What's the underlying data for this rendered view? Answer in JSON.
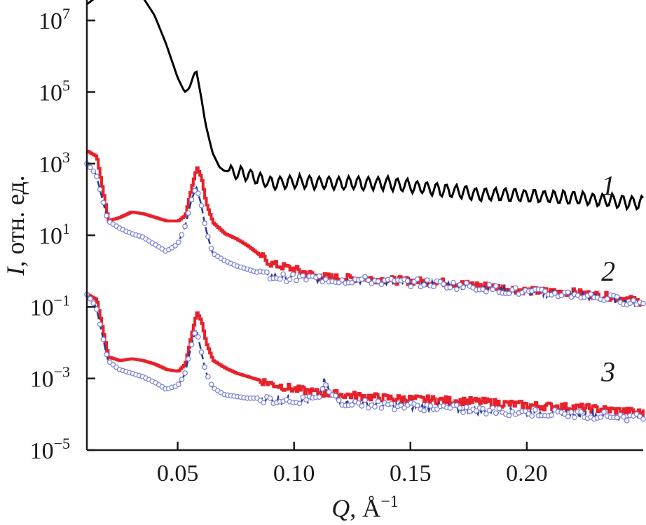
{
  "chart_data": {
    "type": "line",
    "title": "",
    "xlabel": "Q, Å−1",
    "ylabel": "I, отн. ед.",
    "xlabel_parts": {
      "var": "Q",
      "rest": ", Å",
      "sup": "−1"
    },
    "ylabel_parts": {
      "var": "I",
      "rest": ", отн. ед."
    },
    "x_scale": "linear",
    "y_scale": "log",
    "xlim": [
      0.011,
      0.25
    ],
    "ylim_exp": [
      -5,
      8
    ],
    "x_ticks": [
      {
        "value": 0.05,
        "label": "0.05"
      },
      {
        "value": 0.1,
        "label": "0.10"
      },
      {
        "value": 0.15,
        "label": "0.15"
      },
      {
        "value": 0.2,
        "label": "0.20"
      }
    ],
    "y_ticks": [
      {
        "exp": 7,
        "base": "10",
        "sup": "7"
      },
      {
        "exp": 5,
        "base": "10",
        "sup": "5"
      },
      {
        "exp": 3,
        "base": "10",
        "sup": "3"
      },
      {
        "exp": 1,
        "base": "10",
        "sup": "1"
      },
      {
        "exp": -1,
        "base": "10",
        "sup": "−1"
      },
      {
        "exp": -3,
        "base": "10",
        "sup": "−3"
      },
      {
        "exp": -5,
        "base": "10",
        "sup": "−5"
      }
    ],
    "grid": false,
    "legend": "none",
    "curve_labels": [
      {
        "text": "1",
        "anchor": [
          0.235,
          2.4
        ]
      },
      {
        "text": "2",
        "anchor": [
          0.235,
          0.0
        ]
      },
      {
        "text": "3",
        "anchor": [
          0.235,
          -2.8
        ]
      }
    ],
    "colors": {
      "curve1": "#000000",
      "experiment": "#e8202a",
      "model_line": "#2a3a9a",
      "model_markers": "#7f86d8"
    },
    "series": [
      {
        "id": "1",
        "style": "black-line",
        "oscillating": true,
        "x": [
          0.011,
          0.015,
          0.02,
          0.025,
          0.03,
          0.035,
          0.04,
          0.045,
          0.05,
          0.053,
          0.055,
          0.057,
          0.058,
          0.06,
          0.062,
          0.065,
          0.068,
          0.07,
          0.075,
          0.08,
          0.09,
          0.1,
          0.12,
          0.14,
          0.16,
          0.18,
          0.2,
          0.22,
          0.24,
          0.248
        ],
        "log10_y": [
          7.45,
          7.65,
          7.78,
          7.85,
          7.83,
          7.65,
          7.15,
          6.35,
          5.4,
          5.0,
          5.1,
          5.5,
          5.6,
          4.9,
          4.1,
          3.3,
          2.9,
          2.8,
          2.75,
          2.7,
          2.45,
          2.5,
          2.45,
          2.45,
          2.3,
          2.15,
          2.1,
          2.05,
          1.95,
          1.9
        ]
      },
      {
        "id": "2-exp",
        "style": "red-step",
        "x": [
          0.011,
          0.015,
          0.02,
          0.025,
          0.03,
          0.035,
          0.04,
          0.045,
          0.05,
          0.053,
          0.056,
          0.058,
          0.06,
          0.062,
          0.065,
          0.07,
          0.075,
          0.08,
          0.085,
          0.09,
          0.1,
          0.11,
          0.12,
          0.13,
          0.14,
          0.16,
          0.18,
          0.2,
          0.22,
          0.24,
          0.248
        ],
        "log10_y": [
          3.35,
          3.2,
          1.4,
          1.5,
          1.65,
          1.6,
          1.5,
          1.4,
          1.4,
          1.55,
          2.4,
          2.9,
          2.6,
          1.9,
          1.35,
          1.05,
          0.9,
          0.7,
          0.45,
          0.2,
          0.05,
          -0.15,
          -0.2,
          -0.2,
          -0.25,
          -0.3,
          -0.4,
          -0.55,
          -0.6,
          -0.75,
          -0.85
        ]
      },
      {
        "id": "2-model",
        "style": "blue-dash-circles",
        "x": [
          0.011,
          0.015,
          0.02,
          0.025,
          0.03,
          0.035,
          0.04,
          0.045,
          0.05,
          0.053,
          0.056,
          0.058,
          0.06,
          0.062,
          0.065,
          0.07,
          0.075,
          0.08,
          0.085,
          0.09,
          0.1,
          0.11,
          0.12,
          0.13,
          0.14,
          0.16,
          0.18,
          0.2,
          0.22,
          0.24,
          0.248
        ],
        "log10_y": [
          3.0,
          2.7,
          1.4,
          1.2,
          1.05,
          0.95,
          0.75,
          0.55,
          0.75,
          1.2,
          2.0,
          2.35,
          1.9,
          1.2,
          0.5,
          0.3,
          0.15,
          0.05,
          -0.05,
          -0.15,
          -0.2,
          -0.2,
          -0.25,
          -0.25,
          -0.3,
          -0.35,
          -0.45,
          -0.6,
          -0.65,
          -0.8,
          -0.9
        ]
      },
      {
        "id": "3-exp",
        "style": "red-step",
        "x": [
          0.011,
          0.015,
          0.02,
          0.025,
          0.03,
          0.035,
          0.04,
          0.045,
          0.05,
          0.053,
          0.056,
          0.058,
          0.06,
          0.062,
          0.065,
          0.07,
          0.075,
          0.08,
          0.085,
          0.09,
          0.1,
          0.11,
          0.12,
          0.13,
          0.14,
          0.16,
          0.18,
          0.2,
          0.22,
          0.24,
          0.248
        ],
        "log10_y": [
          -0.65,
          -0.8,
          -2.4,
          -2.5,
          -2.45,
          -2.5,
          -2.6,
          -2.75,
          -2.8,
          -2.6,
          -1.7,
          -1.15,
          -1.4,
          -2.0,
          -2.5,
          -2.7,
          -2.85,
          -2.95,
          -3.05,
          -3.15,
          -3.3,
          -3.4,
          -3.45,
          -3.5,
          -3.55,
          -3.6,
          -3.65,
          -3.75,
          -3.8,
          -3.9,
          -3.95
        ]
      },
      {
        "id": "3-model",
        "style": "blue-dash-circles",
        "x": [
          0.011,
          0.015,
          0.02,
          0.025,
          0.03,
          0.035,
          0.04,
          0.045,
          0.05,
          0.053,
          0.056,
          0.058,
          0.06,
          0.062,
          0.065,
          0.07,
          0.075,
          0.08,
          0.085,
          0.09,
          0.1,
          0.11,
          0.113,
          0.116,
          0.12,
          0.13,
          0.14,
          0.16,
          0.18,
          0.2,
          0.22,
          0.24,
          0.248
        ],
        "log10_y": [
          -0.65,
          -1.0,
          -2.5,
          -2.75,
          -2.85,
          -2.95,
          -3.1,
          -3.3,
          -3.2,
          -2.9,
          -2.05,
          -1.6,
          -2.2,
          -2.8,
          -3.25,
          -3.45,
          -3.5,
          -3.55,
          -3.55,
          -3.6,
          -3.6,
          -3.6,
          -3.1,
          -3.45,
          -3.65,
          -3.7,
          -3.75,
          -3.8,
          -3.9,
          -3.95,
          -4.0,
          -4.05,
          -4.1
        ]
      }
    ]
  }
}
